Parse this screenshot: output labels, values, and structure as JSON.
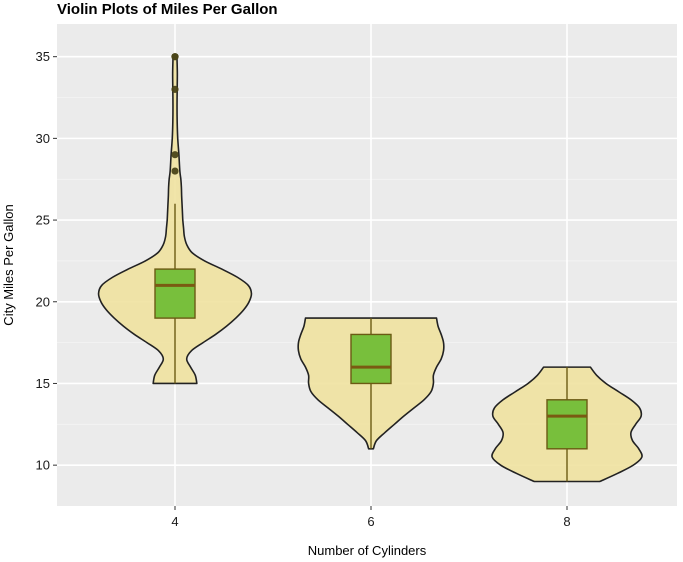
{
  "chart_data": {
    "type": "violin",
    "title": "Violin Plots of Miles Per Gallon",
    "xlabel": "Number of Cylinders",
    "ylabel": "City Miles Per Gallon",
    "categories": [
      "4",
      "6",
      "8"
    ],
    "ylim": [
      7.5,
      37
    ],
    "yticks": [
      10,
      15,
      20,
      25,
      30,
      35
    ],
    "grid": true,
    "legend": "none",
    "colors": {
      "panel": "#ebebeb",
      "grid_major": "#ffffff",
      "grid_minor": "#f5f5f5",
      "violin_fill": "#f0e2a0",
      "violin_stroke": "#222222",
      "box_fill": "#78bf3c",
      "box_stroke": "#6b5a14",
      "median": "#7a5a12",
      "outlier": "#4a4418"
    },
    "groups": [
      {
        "category": "4",
        "box": {
          "q1": 19,
          "median": 21,
          "q3": 22,
          "whisker_low": 15,
          "whisker_high": 26
        },
        "outliers": [
          28,
          29,
          33,
          35,
          35
        ],
        "density": [
          [
            15,
            0.28
          ],
          [
            15.5,
            0.26
          ],
          [
            16,
            0.2
          ],
          [
            16.5,
            0.15
          ],
          [
            17,
            0.21
          ],
          [
            17.5,
            0.36
          ],
          [
            18,
            0.52
          ],
          [
            18.5,
            0.66
          ],
          [
            19,
            0.78
          ],
          [
            19.5,
            0.88
          ],
          [
            20,
            0.95
          ],
          [
            20.5,
            0.98
          ],
          [
            21,
            0.94
          ],
          [
            21.5,
            0.8
          ],
          [
            22,
            0.6
          ],
          [
            22.5,
            0.38
          ],
          [
            23,
            0.22
          ],
          [
            23.5,
            0.15
          ],
          [
            24,
            0.12
          ],
          [
            24.5,
            0.11
          ],
          [
            25,
            0.1
          ],
          [
            25.5,
            0.095
          ],
          [
            26,
            0.09
          ],
          [
            26.5,
            0.085
          ],
          [
            27,
            0.082
          ],
          [
            27.5,
            0.075
          ],
          [
            28,
            0.062
          ],
          [
            29,
            0.05
          ],
          [
            30,
            0.035
          ],
          [
            31,
            0.028
          ],
          [
            32,
            0.026
          ],
          [
            33,
            0.028
          ],
          [
            34,
            0.03
          ],
          [
            35,
            0.025
          ]
        ]
      },
      {
        "category": "6",
        "box": {
          "q1": 15,
          "median": 16,
          "q3": 18,
          "whisker_low": 11,
          "whisker_high": 19
        },
        "outliers": [],
        "density": [
          [
            11,
            0.03
          ],
          [
            11.5,
            0.07
          ],
          [
            12,
            0.18
          ],
          [
            12.5,
            0.3
          ],
          [
            13,
            0.42
          ],
          [
            13.5,
            0.55
          ],
          [
            14,
            0.68
          ],
          [
            14.5,
            0.77
          ],
          [
            15,
            0.8
          ],
          [
            15.5,
            0.8
          ],
          [
            16,
            0.84
          ],
          [
            16.5,
            0.9
          ],
          [
            17,
            0.93
          ],
          [
            17.5,
            0.93
          ],
          [
            18,
            0.9
          ],
          [
            18.5,
            0.86
          ],
          [
            19,
            0.84
          ]
        ]
      },
      {
        "category": "8",
        "box": {
          "q1": 11,
          "median": 13,
          "q3": 14,
          "whisker_low": 9,
          "whisker_high": 16
        },
        "outliers": [],
        "density": [
          [
            9,
            0.42
          ],
          [
            9.5,
            0.65
          ],
          [
            10,
            0.85
          ],
          [
            10.5,
            0.96
          ],
          [
            11,
            0.92
          ],
          [
            11.5,
            0.84
          ],
          [
            12,
            0.82
          ],
          [
            12.5,
            0.88
          ],
          [
            13,
            0.95
          ],
          [
            13.5,
            0.93
          ],
          [
            14,
            0.82
          ],
          [
            14.5,
            0.66
          ],
          [
            15,
            0.5
          ],
          [
            15.5,
            0.38
          ],
          [
            16,
            0.3
          ]
        ]
      }
    ]
  }
}
